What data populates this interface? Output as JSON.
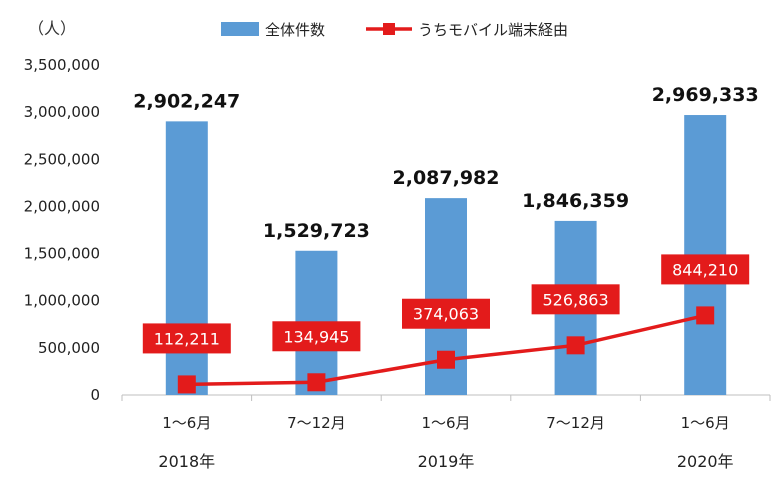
{
  "chart_data": {
    "type": "bar",
    "unit_label": "（人）",
    "categories": [
      "1～6月",
      "7～12月",
      "1～6月",
      "7～12月",
      "1～6月"
    ],
    "year_groups": [
      {
        "label": "2018年",
        "categories": [
          0,
          1
        ]
      },
      {
        "label": "2019年",
        "categories": [
          2,
          3
        ]
      },
      {
        "label": "2020年",
        "categories": [
          4
        ]
      }
    ],
    "series": [
      {
        "name": "全体件数",
        "type": "bar",
        "color": "#5b9bd5",
        "values": [
          2902247,
          1529723,
          2087982,
          1846359,
          2969333
        ],
        "labels": [
          "2,902,247",
          "1,529,723",
          "2,087,982",
          "1,846,359",
          "2,969,333"
        ]
      },
      {
        "name": "うちモバイル端末経由",
        "type": "line",
        "color": "#e31b1b",
        "values": [
          112211,
          134945,
          374063,
          526863,
          844210
        ],
        "labels": [
          "112,211",
          "134,945",
          "374,063",
          "526,863",
          "844,210"
        ]
      }
    ],
    "ylim": [
      0,
      3500000
    ],
    "yticks": [
      0,
      500000,
      1000000,
      1500000,
      2000000,
      2500000,
      3000000,
      3500000
    ],
    "ytick_labels": [
      "0",
      "500,000",
      "1,000,000",
      "1,500,000",
      "2,000,000",
      "2,500,000",
      "3,000,000",
      "3,500,000"
    ],
    "grid": false,
    "legend_position": "top"
  }
}
